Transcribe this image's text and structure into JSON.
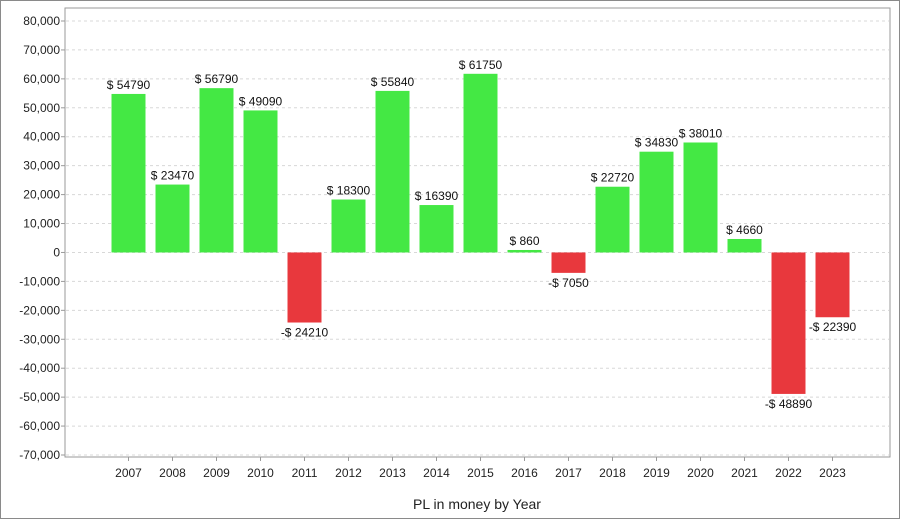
{
  "chart_data": {
    "type": "bar",
    "title": "",
    "xlabel": "PL in money by Year",
    "ylabel": "",
    "ylim": [
      -70000,
      80000
    ],
    "ytick_step": 10000,
    "y_tick_labels": [
      "80,000",
      "70,000",
      "60,000",
      "50,000",
      "40,000",
      "30,000",
      "20,000",
      "10,000",
      "0",
      "-10,000",
      "-20,000",
      "-30,000",
      "-40,000",
      "-50,000",
      "-60,000",
      "-70,000"
    ],
    "categories": [
      "2007",
      "2008",
      "2009",
      "2010",
      "2011",
      "2012",
      "2013",
      "2014",
      "2015",
      "2016",
      "2017",
      "2018",
      "2019",
      "2020",
      "2021",
      "2022",
      "2023"
    ],
    "values": [
      54790,
      23470,
      56790,
      49090,
      -24210,
      18300,
      55840,
      16390,
      61750,
      860,
      -7050,
      22720,
      34830,
      38010,
      4660,
      -48890,
      -22390
    ],
    "data_labels": [
      "$ 54790",
      "$ 23470",
      "$ 56790",
      "$ 49090",
      "-$ 24210",
      "$ 18300",
      "$ 55840",
      "$ 16390",
      "$ 61750",
      "$ 860",
      "-$ 7050",
      "$ 22720",
      "$ 34830",
      "$ 38010",
      "$ 4660",
      "-$ 48890",
      "-$ 22390"
    ],
    "grid": true,
    "colors": {
      "positive": "#44e844",
      "negative": "#e8383d",
      "grid": "#d8d8d8",
      "axis": "#9a9a9a"
    }
  }
}
